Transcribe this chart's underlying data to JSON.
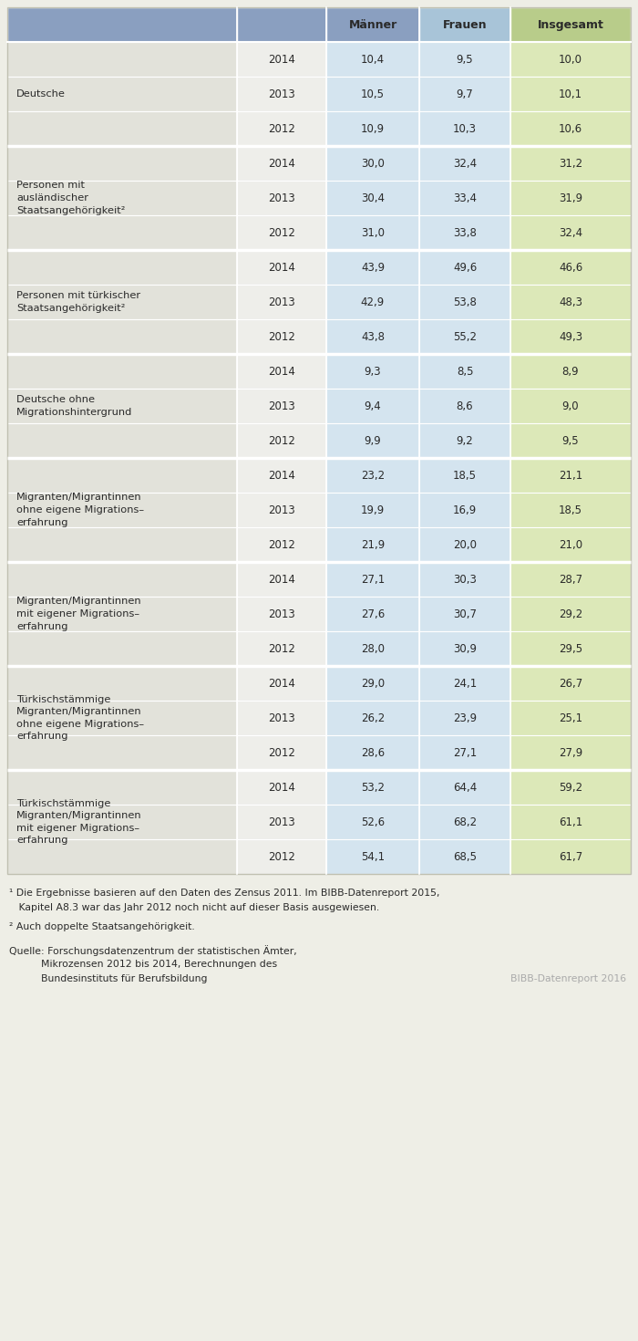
{
  "header_labels": [
    "",
    "",
    "Männer",
    "Frauen",
    "Insgesamt"
  ],
  "rows": [
    {
      "category": "Deutsche",
      "lines": 1,
      "years": [
        "2014",
        "2013",
        "2012"
      ],
      "maenner": [
        "10,4",
        "10,5",
        "10,9"
      ],
      "frauen": [
        "9,5",
        "9,7",
        "10,3"
      ],
      "insgesamt": [
        "10,0",
        "10,1",
        "10,6"
      ]
    },
    {
      "category": "Personen mit\nausländischer\nStaatsangehörigkeit²",
      "lines": 3,
      "years": [
        "2014",
        "2013",
        "2012"
      ],
      "maenner": [
        "30,0",
        "30,4",
        "31,0"
      ],
      "frauen": [
        "32,4",
        "33,4",
        "33,8"
      ],
      "insgesamt": [
        "31,2",
        "31,9",
        "32,4"
      ]
    },
    {
      "category": "Personen mit türkischer\nStaatsangehörigkeit²",
      "lines": 2,
      "years": [
        "2014",
        "2013",
        "2012"
      ],
      "maenner": [
        "43,9",
        "42,9",
        "43,8"
      ],
      "frauen": [
        "49,6",
        "53,8",
        "55,2"
      ],
      "insgesamt": [
        "46,6",
        "48,3",
        "49,3"
      ]
    },
    {
      "category": "Deutsche ohne\nMigrationshintergrund",
      "lines": 2,
      "years": [
        "2014",
        "2013",
        "2012"
      ],
      "maenner": [
        "9,3",
        "9,4",
        "9,9"
      ],
      "frauen": [
        "8,5",
        "8,6",
        "9,2"
      ],
      "insgesamt": [
        "8,9",
        "9,0",
        "9,5"
      ]
    },
    {
      "category": "Migranten/Migrantinnen\nohne eigene Migrations–\nerfahrung",
      "lines": 3,
      "years": [
        "2014",
        "2013",
        "2012"
      ],
      "maenner": [
        "23,2",
        "19,9",
        "21,9"
      ],
      "frauen": [
        "18,5",
        "16,9",
        "20,0"
      ],
      "insgesamt": [
        "21,1",
        "18,5",
        "21,0"
      ]
    },
    {
      "category": "Migranten/Migrantinnen\nmit eigener Migrations–\nerfahrung",
      "lines": 3,
      "years": [
        "2014",
        "2013",
        "2012"
      ],
      "maenner": [
        "27,1",
        "27,6",
        "28,0"
      ],
      "frauen": [
        "30,3",
        "30,7",
        "30,9"
      ],
      "insgesamt": [
        "28,7",
        "29,2",
        "29,5"
      ]
    },
    {
      "category": "Türkischstämmige\nMigranten/Migrantinnen\nohne eigene Migrations–\nerfahrung",
      "lines": 4,
      "years": [
        "2014",
        "2013",
        "2012"
      ],
      "maenner": [
        "29,0",
        "26,2",
        "28,6"
      ],
      "frauen": [
        "24,1",
        "23,9",
        "27,1"
      ],
      "insgesamt": [
        "26,7",
        "25,1",
        "27,9"
      ]
    },
    {
      "category": "Türkischstämmige\nMigranten/Migrantinnen\nmit eigener Migrations–\nerfahrung",
      "lines": 4,
      "years": [
        "2014",
        "2013",
        "2012"
      ],
      "maenner": [
        "53,2",
        "52,6",
        "54,1"
      ],
      "frauen": [
        "64,4",
        "68,2",
        "68,5"
      ],
      "insgesamt": [
        "59,2",
        "61,1",
        "61,7"
      ]
    }
  ],
  "footnote1": "¹ Die Ergebnisse basieren auf den Daten des Zensus 2011. Im BIBB-Datenreport 2015,",
  "footnote1b": "   Kapitel A8.3 war das Jahr 2012 noch nicht auf dieser Basis ausgewiesen.",
  "footnote2": "² Auch doppelte Staatsangehörigkeit.",
  "source_line1": "Quelle: Forschungsdatenzentrum der statistischen Ämter,",
  "source_line2": "          Mikrozensen 2012 bis 2014, Berechnungen des",
  "source_line3": "          Bundesinstituts für Berufsbildung",
  "bibb_label": "BIBB-Datenreport 2016",
  "bg_color": "#eeeee6",
  "header_col_colors": [
    "#8a9fc0",
    "#8a9fc0",
    "#8a9fc0",
    "#a8c4d8",
    "#b8cc8a"
  ],
  "data_col0_color": "#e2e2da",
  "data_col1_color": "#eeeeea",
  "data_col2_color": "#d4e4ef",
  "data_col3_color": "#d4e4ef",
  "data_col4_color": "#dce8b8",
  "sep_color": "#ffffff",
  "text_color": "#2a2a2a",
  "bibb_color": "#aaaaaa"
}
